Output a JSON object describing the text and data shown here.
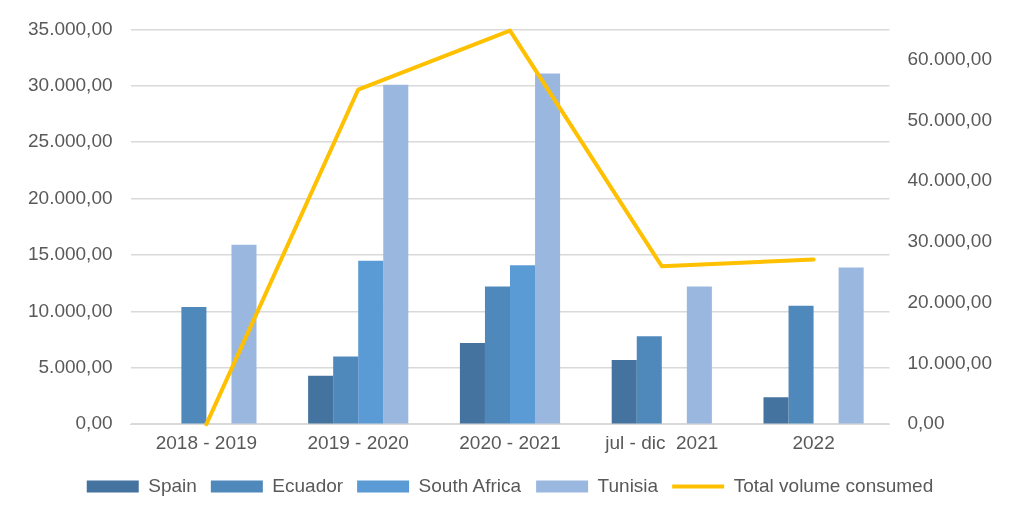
{
  "chart_data": {
    "type": "bar",
    "categories": [
      "2018 - 2019",
      "2019 - 2020",
      "2020 - 2021",
      "jul - dic  2021",
      "2022"
    ],
    "series": [
      {
        "name": "Spain",
        "color": "#44739f",
        "values": [
          null,
          4300,
          7200,
          5700,
          2400
        ]
      },
      {
        "name": "Ecuador",
        "color": "#4f89bc",
        "values": [
          10400,
          6000,
          12200,
          7800,
          10500
        ]
      },
      {
        "name": "South Africa",
        "color": "#5b9bd5",
        "values": [
          null,
          14500,
          14100,
          null,
          null
        ]
      },
      {
        "name": "Tunisia",
        "color": "#9ab8df",
        "values": [
          15900,
          30100,
          31100,
          12200,
          13900
        ]
      },
      {
        "name": "Total volume consumed",
        "type": "line",
        "axis": "y2",
        "color": "#ffc000",
        "values": [
          0,
          55100,
          64800,
          26000,
          27100
        ]
      }
    ],
    "ylim": [
      0,
      35000
    ],
    "yticks": [
      {
        "value": 0,
        "label": "0,00"
      },
      {
        "value": 5000,
        "label": "5.000,00"
      },
      {
        "value": 10000,
        "label": "10.000,00"
      },
      {
        "value": 15000,
        "label": "15.000,00"
      },
      {
        "value": 20000,
        "label": "20.000,00"
      },
      {
        "value": 25000,
        "label": "25.000,00"
      },
      {
        "value": 30000,
        "label": "30.000,00"
      },
      {
        "value": 35000,
        "label": "35.000,00"
      }
    ],
    "y2lim": [
      0,
      65000
    ],
    "y2ticks": [
      {
        "value": 0,
        "label": "0,00"
      },
      {
        "value": 10000,
        "label": "10.000,00"
      },
      {
        "value": 20000,
        "label": "20.000,00"
      },
      {
        "value": 30000,
        "label": "30.000,00"
      },
      {
        "value": 40000,
        "label": "40.000,00"
      },
      {
        "value": 50000,
        "label": "50.000,00"
      },
      {
        "value": 60000,
        "label": "60.000,00"
      }
    ],
    "grid": "y",
    "legend": "bottom",
    "marker": "none",
    "line_style": "solid"
  }
}
